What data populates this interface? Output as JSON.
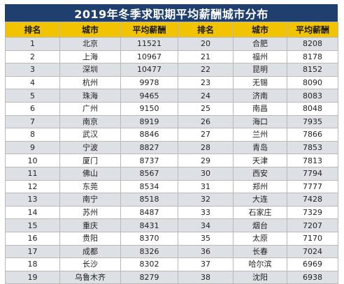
{
  "title": "2019年冬季求职期平均薪酬城市分布",
  "headers": [
    "排名",
    "城市",
    "平均薪酬",
    "排名",
    "城市",
    "平均薪酬"
  ],
  "rows": [
    [
      "1",
      "北京",
      "11521",
      "20",
      "合肥",
      "8208"
    ],
    [
      "2",
      "上海",
      "10967",
      "21",
      "福州",
      "8178"
    ],
    [
      "3",
      "深圳",
      "10477",
      "22",
      "昆明",
      "8152"
    ],
    [
      "4",
      "杭州",
      "9978",
      "23",
      "无锡",
      "8090"
    ],
    [
      "5",
      "珠海",
      "9465",
      "24",
      "济南",
      "8083"
    ],
    [
      "6",
      "广州",
      "9150",
      "25",
      "南昌",
      "8048"
    ],
    [
      "7",
      "南京",
      "8919",
      "26",
      "海口",
      "7935"
    ],
    [
      "8",
      "武汉",
      "8846",
      "27",
      "兰州",
      "7866"
    ],
    [
      "9",
      "宁波",
      "8827",
      "28",
      "青岛",
      "7853"
    ],
    [
      "10",
      "厦门",
      "8737",
      "29",
      "天津",
      "7813"
    ],
    [
      "11",
      "佛山",
      "8567",
      "30",
      "西安",
      "7794"
    ],
    [
      "12",
      "东莞",
      "8534",
      "31",
      "郑州",
      "7777"
    ],
    [
      "13",
      "南宁",
      "8518",
      "32",
      "大连",
      "7428"
    ],
    [
      "14",
      "苏州",
      "8487",
      "33",
      "石家庄",
      "7329"
    ],
    [
      "15",
      "重庆",
      "8431",
      "34",
      "烟台",
      "7207"
    ],
    [
      "16",
      "贵阳",
      "8370",
      "35",
      "太原",
      "7170"
    ],
    [
      "17",
      "成都",
      "8326",
      "36",
      "长春",
      "7024"
    ],
    [
      "18",
      "长沙",
      "8302",
      "37",
      "哈尔滨",
      "6969"
    ],
    [
      "19",
      "乌鲁木齐",
      "8279",
      "38",
      "沈阳",
      "6938"
    ]
  ]
}
